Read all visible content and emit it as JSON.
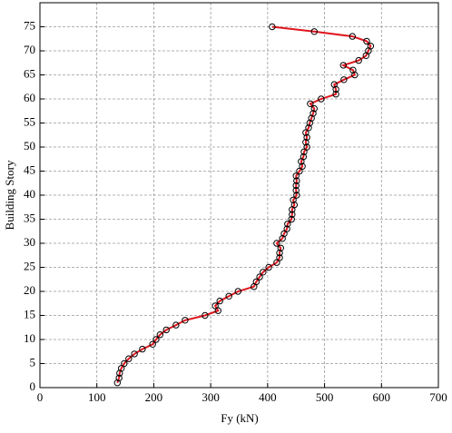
{
  "chart_data": {
    "type": "line",
    "xlabel": "Fy (kN)",
    "ylabel": "Building Story",
    "x": [
      136,
      139,
      140,
      143,
      148,
      156,
      166,
      180,
      198,
      204,
      211,
      222,
      239,
      255,
      290,
      313,
      308,
      316,
      332,
      348,
      376,
      380,
      386,
      392,
      402,
      416,
      421,
      421,
      423,
      416,
      426,
      429,
      434,
      435,
      442,
      443,
      443,
      447,
      445,
      451,
      450,
      450,
      451,
      450,
      456,
      461,
      459,
      463,
      464,
      469,
      467,
      469,
      467,
      472,
      474,
      477,
      480,
      482,
      475,
      494,
      520,
      520,
      517,
      534,
      553,
      550,
      533,
      560,
      573,
      577,
      581,
      574,
      549,
      482,
      408
    ],
    "values": [
      1,
      2,
      3,
      4,
      5,
      6,
      7,
      8,
      9,
      10,
      11,
      12,
      13,
      14,
      15,
      16,
      17,
      18,
      19,
      20,
      21,
      22,
      23,
      24,
      25,
      26,
      27,
      28,
      29,
      30,
      31,
      32,
      33,
      34,
      35,
      36,
      37,
      38,
      39,
      40,
      41,
      42,
      43,
      44,
      45,
      46,
      47,
      48,
      49,
      50,
      51,
      52,
      53,
      54,
      55,
      56,
      57,
      58,
      59,
      60,
      61,
      62,
      63,
      64,
      65,
      66,
      67,
      68,
      69,
      70,
      71,
      72,
      73,
      74,
      75
    ],
    "color": "#e0161e",
    "marker_color": "#000000",
    "xlim": [
      0,
      700
    ],
    "xticks": [
      0,
      100,
      200,
      300,
      400,
      500,
      600,
      700
    ],
    "ylim": [
      0,
      80
    ],
    "yticks": [
      0,
      5,
      10,
      15,
      20,
      25,
      30,
      35,
      40,
      45,
      50,
      55,
      60,
      65,
      70,
      75
    ],
    "grid": true
  }
}
